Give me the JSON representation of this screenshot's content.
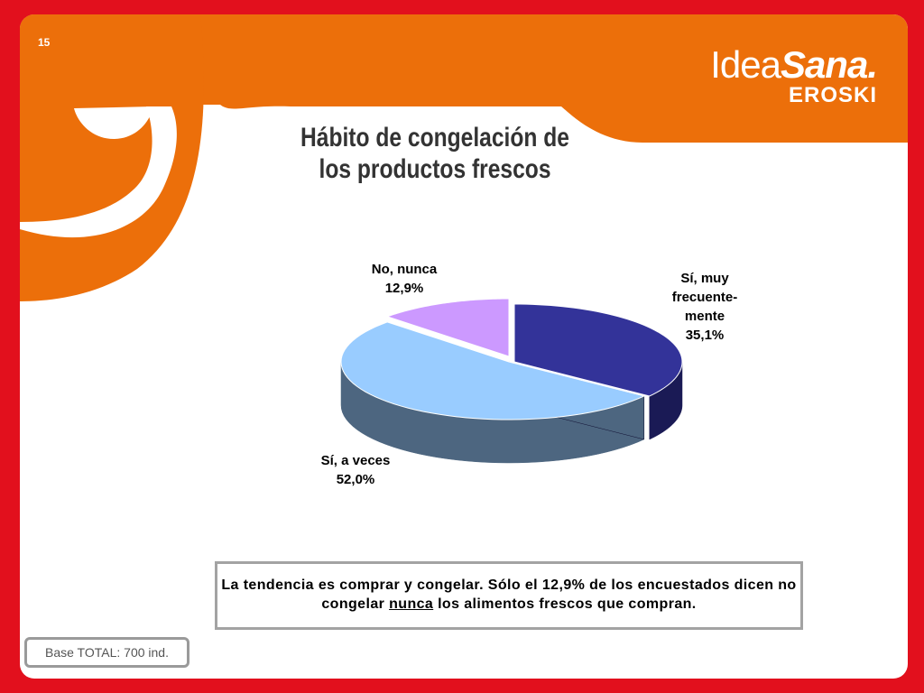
{
  "slide": {
    "number": "15",
    "title_line1": "Hábito de congelación de",
    "title_line2": "los productos frescos"
  },
  "logo": {
    "idea": "Idea",
    "sana": "Sana.",
    "eroski": "EROSKI"
  },
  "colors": {
    "frame": "#e2101d",
    "band": "#ec6f0a",
    "slice_frequent": "#333399",
    "slice_sometimes": "#99ccff",
    "slice_never": "#cc99ff"
  },
  "chart_data": {
    "type": "pie",
    "variant": "3d",
    "slices": [
      {
        "label_line1": "Sí, muy",
        "label_line2": "frecuente-",
        "label_line3": "mente",
        "value": 35.1,
        "value_label": "35,1%",
        "color": "#333399",
        "side_color": "#1a1a55"
      },
      {
        "label": "Sí, a veces",
        "value": 52.0,
        "value_label": "52,0%",
        "color": "#99ccff",
        "side_color": "#4d6680"
      },
      {
        "label": "No, nunca",
        "value": 12.9,
        "value_label": "12,9%",
        "color": "#cc99ff",
        "side_color": "#66508a"
      }
    ]
  },
  "conclusion": {
    "before": "La tendencia es comprar y congelar. Sólo el 12,9% de los encuestados dicen no congelar ",
    "underlined": "nunca",
    "after": " los alimentos frescos que compran."
  },
  "footer": {
    "base": "Base TOTAL: 700 ind."
  }
}
